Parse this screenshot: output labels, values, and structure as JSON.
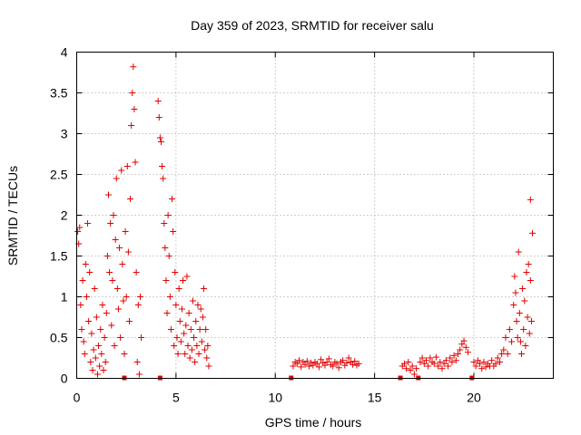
{
  "chart_data": {
    "type": "scatter",
    "title": "Day 359 of 2023, SRMTID for receiver salu",
    "xlabel": "GPS time / hours",
    "ylabel": "SRMTID / TECUs",
    "xlim": [
      0,
      24
    ],
    "ylim": [
      0,
      4
    ],
    "x_ticks": [
      0,
      5,
      10,
      15,
      20
    ],
    "x_tick_labels": [
      "0",
      "5",
      "10",
      "15",
      "20"
    ],
    "y_ticks": [
      0,
      0.5,
      1,
      1.5,
      2,
      2.5,
      3,
      3.5,
      4
    ],
    "y_tick_labels": [
      "0",
      "0.5",
      "1",
      "1.5",
      "2",
      "2.5",
      "3",
      "3.5",
      "4"
    ],
    "grid": true,
    "series_color": "#e00000",
    "marker": "+",
    "zero_markers_x": [
      2.4,
      4.2,
      10.8,
      16.3,
      17.2,
      19.9
    ],
    "points": [
      [
        0.05,
        1.8
      ],
      [
        0.1,
        1.65
      ],
      [
        0.15,
        1.85
      ],
      [
        0.2,
        0.9
      ],
      [
        0.25,
        0.6
      ],
      [
        0.3,
        1.2
      ],
      [
        0.35,
        0.45
      ],
      [
        0.4,
        0.3
      ],
      [
        0.45,
        1.4
      ],
      [
        0.5,
        1.0
      ],
      [
        0.55,
        1.9
      ],
      [
        0.6,
        0.7
      ],
      [
        0.65,
        1.3
      ],
      [
        0.7,
        0.2
      ],
      [
        0.75,
        0.55
      ],
      [
        0.8,
        0.1
      ],
      [
        0.85,
        0.35
      ],
      [
        0.9,
        1.1
      ],
      [
        0.95,
        0.25
      ],
      [
        1.0,
        0.75
      ],
      [
        1.05,
        0.05
      ],
      [
        1.1,
        0.4
      ],
      [
        1.15,
        0.15
      ],
      [
        1.2,
        0.6
      ],
      [
        1.25,
        0.3
      ],
      [
        1.3,
        0.9
      ],
      [
        1.35,
        0.1
      ],
      [
        1.4,
        0.5
      ],
      [
        1.45,
        0.2
      ],
      [
        1.5,
        0.8
      ],
      [
        1.55,
        1.5
      ],
      [
        1.6,
        2.25
      ],
      [
        1.65,
        1.3
      ],
      [
        1.7,
        1.9
      ],
      [
        1.75,
        0.65
      ],
      [
        1.8,
        1.2
      ],
      [
        1.85,
        2.0
      ],
      [
        1.9,
        0.4
      ],
      [
        1.95,
        1.7
      ],
      [
        2.0,
        2.45
      ],
      [
        2.05,
        1.1
      ],
      [
        2.1,
        0.85
      ],
      [
        2.15,
        1.6
      ],
      [
        2.2,
        0.5
      ],
      [
        2.25,
        2.55
      ],
      [
        2.3,
        1.4
      ],
      [
        2.35,
        0.95
      ],
      [
        2.4,
        0.3
      ],
      [
        2.45,
        1.8
      ],
      [
        2.5,
        1.0
      ],
      [
        2.55,
        2.6
      ],
      [
        2.6,
        1.55
      ],
      [
        2.65,
        0.7
      ],
      [
        2.7,
        2.2
      ],
      [
        2.75,
        3.1
      ],
      [
        2.8,
        3.5
      ],
      [
        2.85,
        3.82
      ],
      [
        2.9,
        3.3
      ],
      [
        2.95,
        2.65
      ],
      [
        3.0,
        1.3
      ],
      [
        3.05,
        0.2
      ],
      [
        3.1,
        0.9
      ],
      [
        3.15,
        0.05
      ],
      [
        3.2,
        1.0
      ],
      [
        3.25,
        0.5
      ],
      [
        4.1,
        3.4
      ],
      [
        4.15,
        3.2
      ],
      [
        4.2,
        2.95
      ],
      [
        4.25,
        2.9
      ],
      [
        4.3,
        2.6
      ],
      [
        4.35,
        2.45
      ],
      [
        4.4,
        1.9
      ],
      [
        4.45,
        1.6
      ],
      [
        4.5,
        1.2
      ],
      [
        4.55,
        0.8
      ],
      [
        4.6,
        2.0
      ],
      [
        4.65,
        1.5
      ],
      [
        4.7,
        1.0
      ],
      [
        4.75,
        0.6
      ],
      [
        4.8,
        2.2
      ],
      [
        4.85,
        1.8
      ],
      [
        4.9,
        0.4
      ],
      [
        4.95,
        1.3
      ],
      [
        5.0,
        0.9
      ],
      [
        5.05,
        0.5
      ],
      [
        5.1,
        0.3
      ],
      [
        5.15,
        1.1
      ],
      [
        5.2,
        0.7
      ],
      [
        5.25,
        0.45
      ],
      [
        5.3,
        0.85
      ],
      [
        5.35,
        1.2
      ],
      [
        5.4,
        0.55
      ],
      [
        5.45,
        0.3
      ],
      [
        5.5,
        0.65
      ],
      [
        5.55,
        1.25
      ],
      [
        5.6,
        0.4
      ],
      [
        5.65,
        0.8
      ],
      [
        5.7,
        0.25
      ],
      [
        5.75,
        0.6
      ],
      [
        5.8,
        0.35
      ],
      [
        5.85,
        0.95
      ],
      [
        5.9,
        0.5
      ],
      [
        5.95,
        0.2
      ],
      [
        6.0,
        0.7
      ],
      [
        6.05,
        0.4
      ],
      [
        6.1,
        0.9
      ],
      [
        6.15,
        0.3
      ],
      [
        6.2,
        0.6
      ],
      [
        6.25,
        0.85
      ],
      [
        6.3,
        0.45
      ],
      [
        6.35,
        0.75
      ],
      [
        6.4,
        1.1
      ],
      [
        6.45,
        0.35
      ],
      [
        6.5,
        0.6
      ],
      [
        6.55,
        0.25
      ],
      [
        6.6,
        0.4
      ],
      [
        6.65,
        0.15
      ],
      [
        10.9,
        0.15
      ],
      [
        11.0,
        0.2
      ],
      [
        11.1,
        0.18
      ],
      [
        11.2,
        0.22
      ],
      [
        11.3,
        0.14
      ],
      [
        11.4,
        0.2
      ],
      [
        11.5,
        0.17
      ],
      [
        11.6,
        0.21
      ],
      [
        11.7,
        0.15
      ],
      [
        11.8,
        0.19
      ],
      [
        11.9,
        0.16
      ],
      [
        12.0,
        0.2
      ],
      [
        12.1,
        0.18
      ],
      [
        12.2,
        0.14
      ],
      [
        12.3,
        0.23
      ],
      [
        12.4,
        0.19
      ],
      [
        12.5,
        0.16
      ],
      [
        12.6,
        0.2
      ],
      [
        12.7,
        0.24
      ],
      [
        12.8,
        0.17
      ],
      [
        12.9,
        0.15
      ],
      [
        13.0,
        0.2
      ],
      [
        13.1,
        0.18
      ],
      [
        13.2,
        0.13
      ],
      [
        13.3,
        0.2
      ],
      [
        13.4,
        0.22
      ],
      [
        13.5,
        0.16
      ],
      [
        13.6,
        0.19
      ],
      [
        13.7,
        0.25
      ],
      [
        13.8,
        0.2
      ],
      [
        13.9,
        0.17
      ],
      [
        14.0,
        0.21
      ],
      [
        14.1,
        0.16
      ],
      [
        14.2,
        0.18
      ],
      [
        16.4,
        0.15
      ],
      [
        16.5,
        0.18
      ],
      [
        16.6,
        0.12
      ],
      [
        16.7,
        0.2
      ],
      [
        16.8,
        0.1
      ],
      [
        16.9,
        0.15
      ],
      [
        17.0,
        0.05
      ],
      [
        17.1,
        0.12
      ],
      [
        17.3,
        0.2
      ],
      [
        17.4,
        0.25
      ],
      [
        17.5,
        0.18
      ],
      [
        17.6,
        0.22
      ],
      [
        17.7,
        0.15
      ],
      [
        17.8,
        0.25
      ],
      [
        17.9,
        0.2
      ],
      [
        18.0,
        0.18
      ],
      [
        18.1,
        0.26
      ],
      [
        18.2,
        0.15
      ],
      [
        18.3,
        0.2
      ],
      [
        18.4,
        0.12
      ],
      [
        18.5,
        0.18
      ],
      [
        18.6,
        0.22
      ],
      [
        18.7,
        0.15
      ],
      [
        18.8,
        0.25
      ],
      [
        18.9,
        0.2
      ],
      [
        19.0,
        0.28
      ],
      [
        19.1,
        0.22
      ],
      [
        19.2,
        0.3
      ],
      [
        19.3,
        0.35
      ],
      [
        19.4,
        0.42
      ],
      [
        19.5,
        0.46
      ],
      [
        19.6,
        0.38
      ],
      [
        19.7,
        0.32
      ],
      [
        20.0,
        0.2
      ],
      [
        20.1,
        0.15
      ],
      [
        20.2,
        0.22
      ],
      [
        20.3,
        0.18
      ],
      [
        20.4,
        0.12
      ],
      [
        20.5,
        0.2
      ],
      [
        20.6,
        0.14
      ],
      [
        20.7,
        0.18
      ],
      [
        20.8,
        0.15
      ],
      [
        20.9,
        0.22
      ],
      [
        21.0,
        0.15
      ],
      [
        21.1,
        0.18
      ],
      [
        21.2,
        0.25
      ],
      [
        21.3,
        0.2
      ],
      [
        21.4,
        0.3
      ],
      [
        21.5,
        0.35
      ],
      [
        21.6,
        0.5
      ],
      [
        21.7,
        0.3
      ],
      [
        21.8,
        0.6
      ],
      [
        21.9,
        0.45
      ],
      [
        22.0,
        0.9
      ],
      [
        22.05,
        1.25
      ],
      [
        22.1,
        1.05
      ],
      [
        22.15,
        0.7
      ],
      [
        22.2,
        0.5
      ],
      [
        22.25,
        1.55
      ],
      [
        22.3,
        0.8
      ],
      [
        22.35,
        0.45
      ],
      [
        22.4,
        0.3
      ],
      [
        22.45,
        1.1
      ],
      [
        22.5,
        0.6
      ],
      [
        22.55,
        0.95
      ],
      [
        22.6,
        0.4
      ],
      [
        22.65,
        1.3
      ],
      [
        22.7,
        0.75
      ],
      [
        22.75,
        1.4
      ],
      [
        22.8,
        0.55
      ],
      [
        22.85,
        1.2
      ],
      [
        22.9,
        0.7
      ],
      [
        22.95,
        1.78
      ],
      [
        22.85,
        2.19
      ]
    ]
  }
}
